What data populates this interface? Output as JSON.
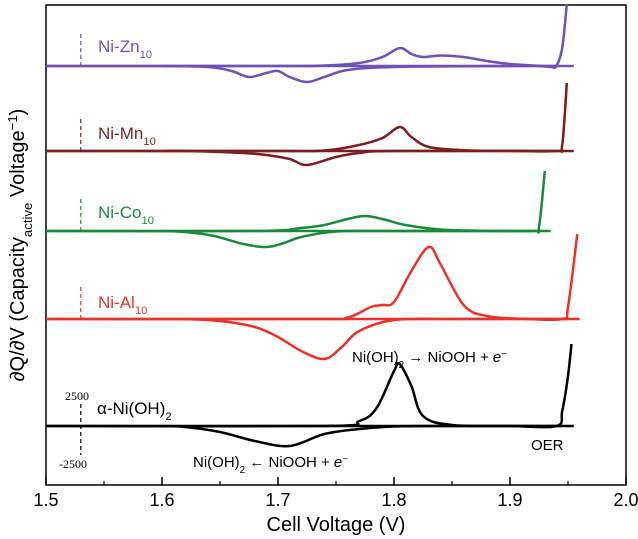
{
  "chart_data": {
    "type": "line",
    "xlabel": "Cell Voltage (V)",
    "ylabel": {
      "parts": [
        {
          "t": "∂Q/∂V (Capacity",
          "s": "n"
        },
        {
          "t": "active",
          "s": "sub"
        },
        {
          "t": " Voltage",
          "s": "n"
        },
        {
          "t": "−1",
          "s": "sup"
        },
        {
          "t": ")",
          "s": "n"
        }
      ]
    },
    "xlim": [
      1.5,
      2.0
    ],
    "xticks": [
      "1.5",
      "1.6",
      "1.7",
      "1.8",
      "1.9",
      "2.0"
    ],
    "scale_bar": {
      "x": 1.53,
      "top_label": "2500",
      "bottom_label": "-2500"
    },
    "series": [
      {
        "name": "Ni-Zn",
        "name_sub": "10",
        "color": "#6e52b5",
        "x_end": 1.955,
        "charge": [
          [
            1.5,
            0
          ],
          [
            1.7,
            0
          ],
          [
            1.74,
            0.5
          ],
          [
            1.77,
            3
          ],
          [
            1.79,
            9
          ],
          [
            1.805,
            18
          ],
          [
            1.815,
            12
          ],
          [
            1.825,
            9
          ],
          [
            1.84,
            10.5
          ],
          [
            1.86,
            9
          ],
          [
            1.88,
            5
          ],
          [
            1.9,
            2
          ],
          [
            1.92,
            0.5
          ],
          [
            1.935,
            -1
          ],
          [
            1.94,
            0
          ],
          [
            1.945,
            18
          ],
          [
            1.949,
            62
          ]
        ],
        "discharge": [
          [
            1.94,
            0
          ],
          [
            1.9,
            0
          ],
          [
            1.8,
            -1
          ],
          [
            1.76,
            -4
          ],
          [
            1.74,
            -11
          ],
          [
            1.725,
            -16
          ],
          [
            1.71,
            -11
          ],
          [
            1.7,
            -5
          ],
          [
            1.69,
            -7
          ],
          [
            1.675,
            -11
          ],
          [
            1.66,
            -5
          ],
          [
            1.64,
            -1
          ],
          [
            1.6,
            0
          ]
        ]
      },
      {
        "name": "Ni-Mn",
        "name_sub": "10",
        "color": "#7b1e1e",
        "x_end": 1.955,
        "charge": [
          [
            1.5,
            0
          ],
          [
            1.7,
            0
          ],
          [
            1.74,
            0.5
          ],
          [
            1.77,
            6
          ],
          [
            1.79,
            13
          ],
          [
            1.805,
            24
          ],
          [
            1.815,
            14
          ],
          [
            1.83,
            4
          ],
          [
            1.86,
            0.8
          ],
          [
            1.9,
            0.1
          ],
          [
            1.94,
            0
          ],
          [
            1.945,
            6
          ],
          [
            1.949,
            68
          ]
        ],
        "discharge": [
          [
            1.94,
            0
          ],
          [
            1.8,
            0
          ],
          [
            1.77,
            -2
          ],
          [
            1.75,
            -6
          ],
          [
            1.725,
            -14
          ],
          [
            1.71,
            -8
          ],
          [
            1.69,
            -4
          ],
          [
            1.67,
            -2
          ],
          [
            1.62,
            0
          ],
          [
            1.6,
            0
          ]
        ]
      },
      {
        "name": "Ni-Co",
        "name_sub": "10",
        "color": "#1a8a3a",
        "x_end": 1.935,
        "charge": [
          [
            1.5,
            0
          ],
          [
            1.68,
            0
          ],
          [
            1.72,
            3
          ],
          [
            1.74,
            6
          ],
          [
            1.76,
            12
          ],
          [
            1.775,
            15
          ],
          [
            1.79,
            12
          ],
          [
            1.81,
            6
          ],
          [
            1.84,
            1.5
          ],
          [
            1.88,
            0.2
          ],
          [
            1.92,
            0
          ],
          [
            1.925,
            4
          ],
          [
            1.93,
            60
          ]
        ],
        "discharge": [
          [
            1.92,
            0
          ],
          [
            1.8,
            0
          ],
          [
            1.75,
            -0.5
          ],
          [
            1.72,
            -6
          ],
          [
            1.705,
            -12
          ],
          [
            1.69,
            -16
          ],
          [
            1.67,
            -13
          ],
          [
            1.645,
            -5
          ],
          [
            1.62,
            -1
          ],
          [
            1.6,
            0
          ]
        ]
      },
      {
        "name": "Ni-Al",
        "name_sub": "10",
        "color": "#e8322a",
        "x_end": 1.96,
        "charge": [
          [
            1.5,
            0
          ],
          [
            1.73,
            0
          ],
          [
            1.76,
            1.5
          ],
          [
            1.78,
            12
          ],
          [
            1.79,
            14
          ],
          [
            1.8,
            17
          ],
          [
            1.815,
            48
          ],
          [
            1.83,
            72
          ],
          [
            1.84,
            55
          ],
          [
            1.86,
            14
          ],
          [
            1.88,
            3
          ],
          [
            1.91,
            0.3
          ],
          [
            1.945,
            0
          ],
          [
            1.95,
            12
          ],
          [
            1.958,
            85
          ]
        ],
        "discharge": [
          [
            1.95,
            0
          ],
          [
            1.85,
            0
          ],
          [
            1.8,
            -1
          ],
          [
            1.77,
            -12
          ],
          [
            1.755,
            -28
          ],
          [
            1.74,
            -40
          ],
          [
            1.72,
            -32
          ],
          [
            1.7,
            -18
          ],
          [
            1.68,
            -8
          ],
          [
            1.65,
            -2
          ],
          [
            1.62,
            0
          ]
        ]
      },
      {
        "name": "α-Ni(OH)",
        "name_sub": "2",
        "color": "#000000",
        "x_end": 1.955,
        "charge": [
          [
            1.5,
            0
          ],
          [
            1.74,
            0
          ],
          [
            1.77,
            5
          ],
          [
            1.785,
            18
          ],
          [
            1.8,
            55
          ],
          [
            1.805,
            62
          ],
          [
            1.815,
            40
          ],
          [
            1.825,
            10
          ],
          [
            1.85,
            1
          ],
          [
            1.9,
            0
          ],
          [
            1.94,
            0
          ],
          [
            1.945,
            15
          ],
          [
            1.95,
            50
          ],
          [
            1.953,
            82
          ]
        ],
        "discharge": [
          [
            1.945,
            0
          ],
          [
            1.85,
            0
          ],
          [
            1.8,
            -0.5
          ],
          [
            1.77,
            -3
          ],
          [
            1.74,
            -8
          ],
          [
            1.71,
            -20
          ],
          [
            1.68,
            -15
          ],
          [
            1.65,
            -6
          ],
          [
            1.62,
            -1
          ],
          [
            1.6,
            0
          ]
        ]
      }
    ],
    "annotations": {
      "oxidation": {
        "parts": [
          {
            "t": "Ni(OH)",
            "s": "n"
          },
          {
            "t": "2",
            "s": "sub"
          },
          {
            "t": " → NiOOH + ",
            "s": "n"
          },
          {
            "t": "e",
            "s": "it"
          },
          {
            "t": "−",
            "s": "sup"
          }
        ]
      },
      "reduction": {
        "parts": [
          {
            "t": "Ni(OH)",
            "s": "n"
          },
          {
            "t": "2",
            "s": "sub"
          },
          {
            "t": " ← NiOOH + ",
            "s": "n"
          },
          {
            "t": "e",
            "s": "it"
          },
          {
            "t": "−",
            "s": "sup"
          }
        ]
      },
      "oer": "OER"
    },
    "grid": false,
    "legend": "labels placed on each trace (left)"
  }
}
